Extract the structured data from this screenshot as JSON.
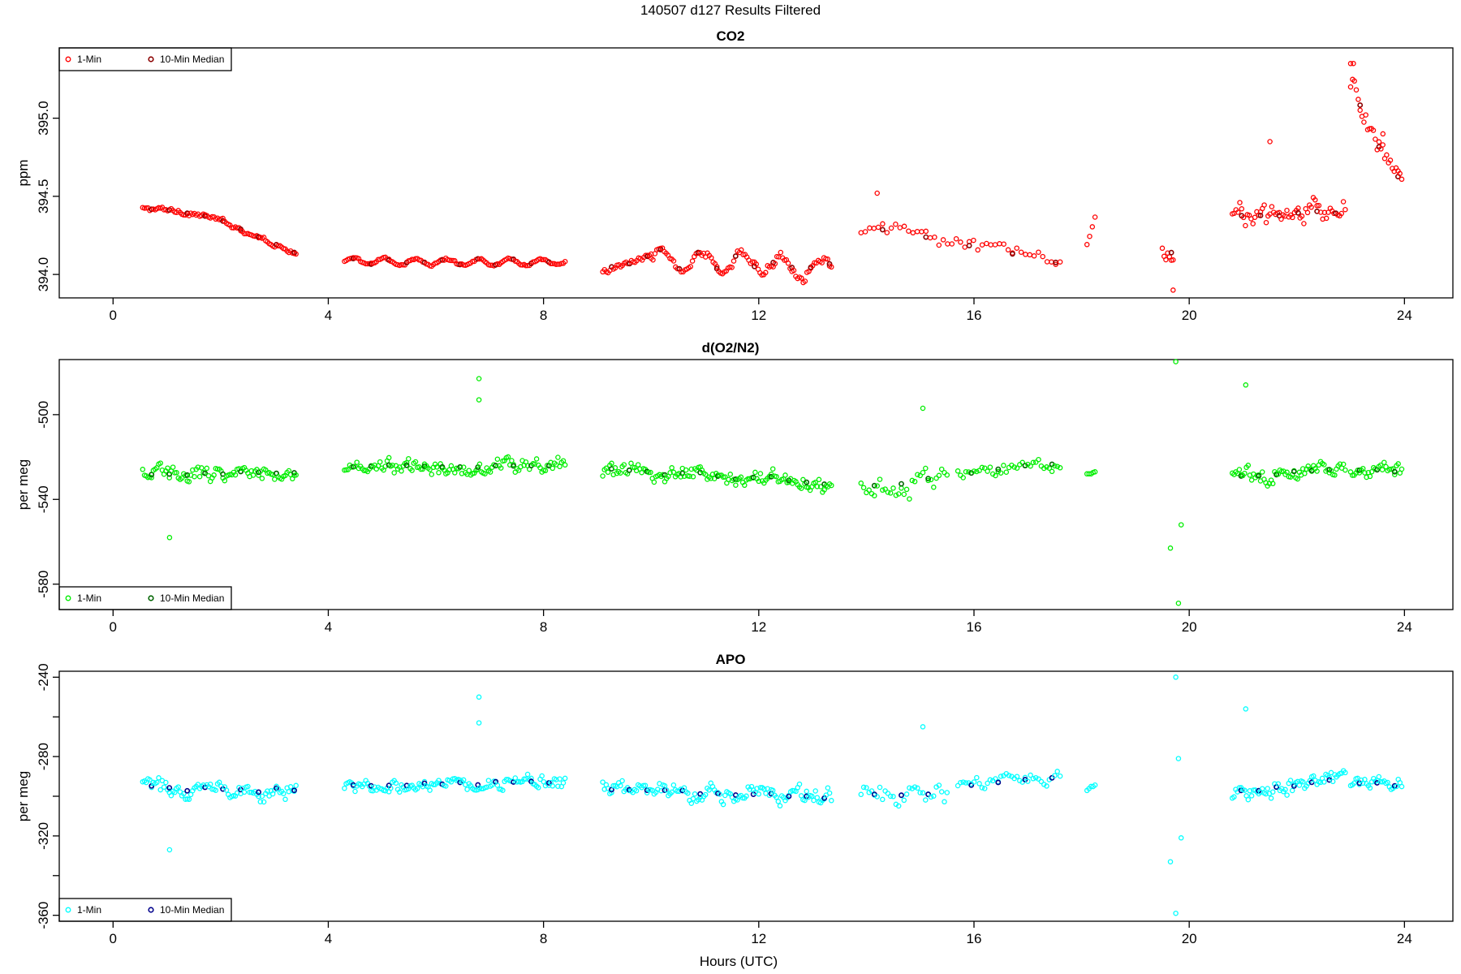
{
  "figure_title": "140507   d127   Results Filtered",
  "xlabel": "Hours (UTC)",
  "chart_data": [
    {
      "type": "scatter",
      "title": "CO2",
      "ylabel": "ppm",
      "xlim": [
        -1.0,
        24.9
      ],
      "ylim": [
        393.85,
        395.45
      ],
      "xticks": [
        0,
        4,
        8,
        12,
        16,
        20,
        24
      ],
      "yticks": [
        394.0,
        394.5,
        395.0
      ],
      "ytick_labels": [
        "394.0",
        "394.5",
        "395.0"
      ],
      "legend": {
        "position": "top-left",
        "entries": [
          "1-Min",
          "10-Min Median"
        ]
      },
      "colors": {
        "one_min": "#ff0000",
        "median": "#8b0000"
      },
      "segments": [
        {
          "x": [
            0.55,
            3.4
          ],
          "y": [
            394.42,
            394.18
          ],
          "shape": "hump",
          "amp": 0.05,
          "noise": 0.02,
          "step": 0.033
        },
        {
          "x": [
            4.3,
            8.4
          ],
          "y": [
            394.08,
            394.08
          ],
          "shape": "flat",
          "amp": 0.02,
          "noise": 0.012,
          "step": 0.033
        },
        {
          "x": [
            9.1,
            10.0
          ],
          "y": [
            394.02,
            394.12
          ],
          "shape": "flat",
          "amp": 0.01,
          "noise": 0.015,
          "step": 0.033
        },
        {
          "x": [
            10.0,
            13.35
          ],
          "y": [
            394.1,
            394.05
          ],
          "shape": "wave",
          "amp": 0.06,
          "noise": 0.04,
          "step": 0.035
        },
        {
          "x": [
            13.9,
            17.6
          ],
          "y": [
            394.3,
            394.08
          ],
          "shape": "noisy",
          "amp": 0.08,
          "noise": 0.06,
          "step": 0.08
        },
        {
          "x": [
            18.1,
            18.25
          ],
          "y": [
            394.18,
            394.34
          ],
          "shape": "noisy",
          "amp": 0.03,
          "noise": 0.04,
          "step": 0.05
        },
        {
          "x": [
            19.5,
            19.7
          ],
          "y": [
            394.15,
            394.15
          ],
          "shape": "noisy",
          "amp": 0.08,
          "noise": 0.09,
          "step": 0.035
        },
        {
          "x": [
            20.8,
            22.9
          ],
          "y": [
            394.35,
            394.4
          ],
          "shape": "noisy",
          "amp": 0.15,
          "noise": 0.1,
          "step": 0.035
        },
        {
          "x": [
            23.0,
            23.95
          ],
          "y": [
            395.1,
            394.6
          ],
          "shape": "decay",
          "amp": 0.3,
          "noise": 0.08,
          "step": 0.035
        }
      ],
      "outliers": [
        {
          "x": 23.05,
          "y": 395.35
        },
        {
          "x": 23.0,
          "y": 395.2
        },
        {
          "x": 23.6,
          "y": 394.9
        },
        {
          "x": 21.5,
          "y": 394.85
        },
        {
          "x": 19.7,
          "y": 393.9
        },
        {
          "x": 14.2,
          "y": 394.52
        }
      ]
    },
    {
      "type": "scatter",
      "title": "d(O2/N2)",
      "ylabel": "per meg",
      "xlim": [
        -1.0,
        24.9
      ],
      "ylim": [
        -592,
        -474
      ],
      "xticks": [
        0,
        4,
        8,
        12,
        16,
        20,
        24
      ],
      "yticks": [
        -500,
        -540,
        -580
      ],
      "ytick_labels": [
        "-500",
        "-540",
        "-580"
      ],
      "legend": {
        "position": "bottom-left",
        "entries": [
          "1-Min",
          "10-Min Median"
        ]
      },
      "colors": {
        "one_min": "#00ee00",
        "median": "#006400"
      },
      "segments": [
        {
          "x": [
            0.55,
            3.4
          ],
          "y": [
            -528,
            -527
          ],
          "shape": "noisy",
          "amp": 3,
          "noise": 5,
          "step": 0.033
        },
        {
          "x": [
            4.3,
            8.4
          ],
          "y": [
            -525,
            -524
          ],
          "shape": "noisy",
          "amp": 3,
          "noise": 4.5,
          "step": 0.033
        },
        {
          "x": [
            9.1,
            13.35
          ],
          "y": [
            -526,
            -532
          ],
          "shape": "noisy",
          "amp": 2,
          "noise": 5,
          "step": 0.033
        },
        {
          "x": [
            13.9,
            15.5
          ],
          "y": [
            -532,
            -530
          ],
          "shape": "noisy",
          "amp": 3,
          "noise": 7,
          "step": 0.05
        },
        {
          "x": [
            15.7,
            17.6
          ],
          "y": [
            -528,
            -522
          ],
          "shape": "noisy",
          "amp": 2,
          "noise": 4,
          "step": 0.05
        },
        {
          "x": [
            18.1,
            18.25
          ],
          "y": [
            -528,
            -527
          ],
          "shape": "noisy",
          "amp": 1,
          "noise": 1.5,
          "step": 0.04
        },
        {
          "x": [
            20.8,
            22.9
          ],
          "y": [
            -530,
            -525
          ],
          "shape": "noisy",
          "amp": 3,
          "noise": 5,
          "step": 0.033
        },
        {
          "x": [
            23.0,
            23.95
          ],
          "y": [
            -526,
            -527
          ],
          "shape": "noisy",
          "amp": 2,
          "noise": 4,
          "step": 0.033
        }
      ],
      "outliers": [
        {
          "x": 19.75,
          "y": -475
        },
        {
          "x": 19.8,
          "y": -589
        },
        {
          "x": 19.65,
          "y": -563
        },
        {
          "x": 19.85,
          "y": -552
        },
        {
          "x": 6.8,
          "y": -483
        },
        {
          "x": 6.8,
          "y": -493
        },
        {
          "x": 21.05,
          "y": -486
        },
        {
          "x": 1.05,
          "y": -558
        },
        {
          "x": 15.05,
          "y": -497
        }
      ]
    },
    {
      "type": "scatter",
      "title": "APO",
      "ylabel": "per meg",
      "xlim": [
        -1.0,
        24.9
      ],
      "ylim": [
        -363,
        -237
      ],
      "xticks": [
        0,
        4,
        8,
        12,
        16,
        20,
        24
      ],
      "yticks": [
        -240,
        -280,
        -320,
        -360
      ],
      "ytick_labels": [
        "-240",
        "-280",
        "-320",
        "-360"
      ],
      "legend": {
        "position": "bottom-left",
        "entries": [
          "1-Min",
          "10-Min Median"
        ]
      },
      "colors": {
        "one_min": "#00ffff",
        "median": "#00008b"
      },
      "segments": [
        {
          "x": [
            0.55,
            3.4
          ],
          "y": [
            -295,
            -297
          ],
          "shape": "noisy",
          "amp": 3,
          "noise": 5,
          "step": 0.033
        },
        {
          "x": [
            4.3,
            8.4
          ],
          "y": [
            -294,
            -293
          ],
          "shape": "noisy",
          "amp": 3,
          "noise": 4.5,
          "step": 0.033
        },
        {
          "x": [
            9.1,
            13.35
          ],
          "y": [
            -296,
            -301
          ],
          "shape": "noisy",
          "amp": 2,
          "noise": 5,
          "step": 0.033
        },
        {
          "x": [
            13.9,
            15.5
          ],
          "y": [
            -300,
            -298
          ],
          "shape": "noisy",
          "amp": 3,
          "noise": 7,
          "step": 0.05
        },
        {
          "x": [
            15.7,
            17.6
          ],
          "y": [
            -296,
            -290
          ],
          "shape": "noisy",
          "amp": 2,
          "noise": 4,
          "step": 0.05
        },
        {
          "x": [
            18.1,
            18.25
          ],
          "y": [
            -297,
            -294
          ],
          "shape": "noisy",
          "amp": 1,
          "noise": 1.5,
          "step": 0.04
        },
        {
          "x": [
            20.8,
            22.9
          ],
          "y": [
            -298,
            -292
          ],
          "shape": "noisy",
          "amp": 3,
          "noise": 5,
          "step": 0.033
        },
        {
          "x": [
            23.0,
            23.95
          ],
          "y": [
            -293,
            -295
          ],
          "shape": "noisy",
          "amp": 2,
          "noise": 4,
          "step": 0.033
        }
      ],
      "outliers": [
        {
          "x": 19.75,
          "y": -240
        },
        {
          "x": 19.75,
          "y": -359
        },
        {
          "x": 19.65,
          "y": -333
        },
        {
          "x": 19.85,
          "y": -321
        },
        {
          "x": 19.8,
          "y": -281
        },
        {
          "x": 6.8,
          "y": -250
        },
        {
          "x": 6.8,
          "y": -263
        },
        {
          "x": 21.05,
          "y": -256
        },
        {
          "x": 1.05,
          "y": -327
        },
        {
          "x": 15.05,
          "y": -265
        }
      ]
    }
  ]
}
